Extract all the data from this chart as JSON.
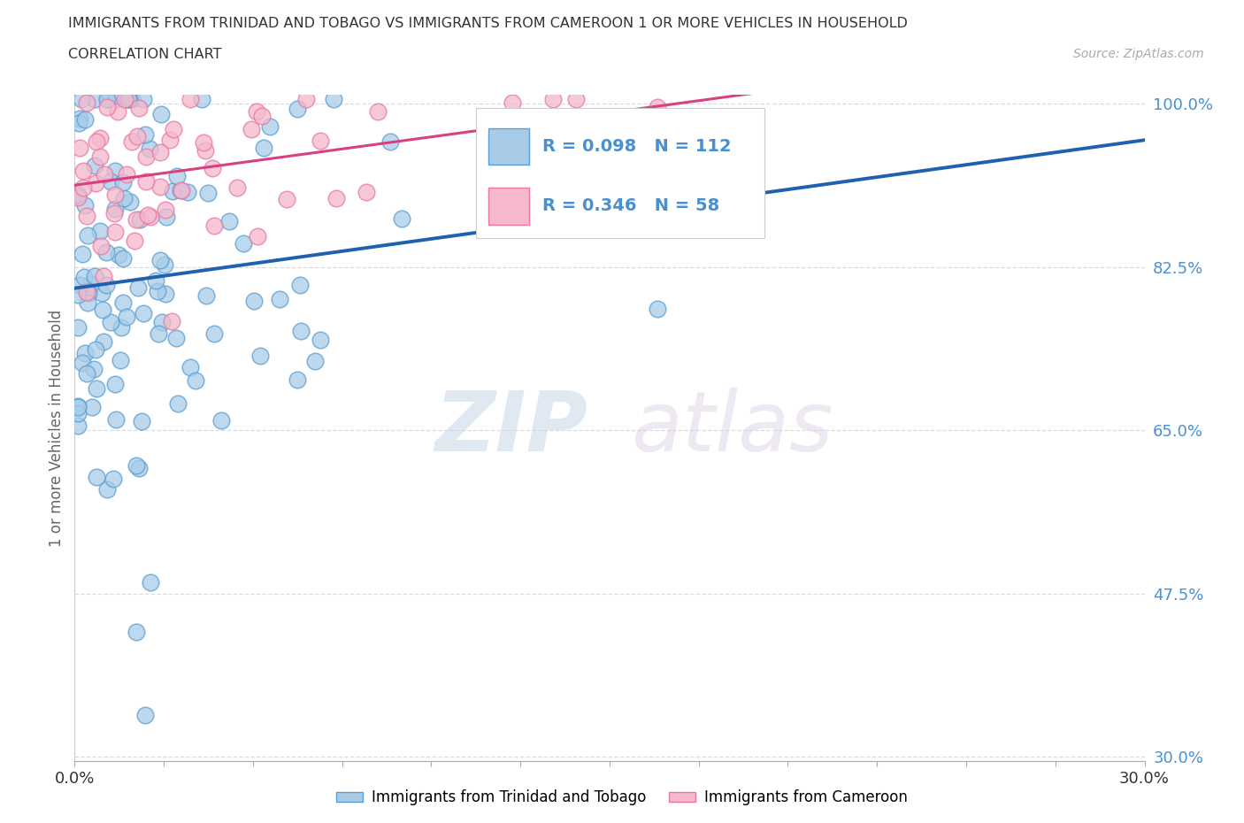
{
  "title_line1": "IMMIGRANTS FROM TRINIDAD AND TOBAGO VS IMMIGRANTS FROM CAMEROON 1 OR MORE VEHICLES IN HOUSEHOLD",
  "title_line2": "CORRELATION CHART",
  "source": "Source: ZipAtlas.com",
  "ylabel": "1 or more Vehicles in Household",
  "legend_label1": "Immigrants from Trinidad and Tobago",
  "legend_label2": "Immigrants from Cameroon",
  "R1": 0.098,
  "N1": 112,
  "R2": 0.346,
  "N2": 58,
  "color1": "#a8cce8",
  "color2": "#f5b8cc",
  "edge_color1": "#5a9fd4",
  "edge_color2": "#e878a0",
  "trend_color1": "#2060b0",
  "trend_color2": "#d84080",
  "xlim": [
    0.0,
    0.3
  ],
  "ylim": [
    0.295,
    1.01
  ],
  "yticks": [
    1.0,
    0.825,
    0.65,
    0.475,
    0.3
  ],
  "ytick_labels": [
    "100.0%",
    "82.5%",
    "65.0%",
    "47.5%",
    "30.0%"
  ],
  "xtick_positions": [
    0.0,
    0.025,
    0.05,
    0.075,
    0.1,
    0.125,
    0.15,
    0.175,
    0.2,
    0.225,
    0.25,
    0.275,
    0.3
  ],
  "watermark_zip": "ZIP",
  "watermark_atlas": "atlas",
  "background_color": "#ffffff",
  "title_color": "#333333",
  "axis_label_color": "#666666",
  "tick_label_color": "#4a90d0",
  "grid_color": "#d8d8d8",
  "legend_r_color": "#4a90d0",
  "legend_text_color": "#222222"
}
